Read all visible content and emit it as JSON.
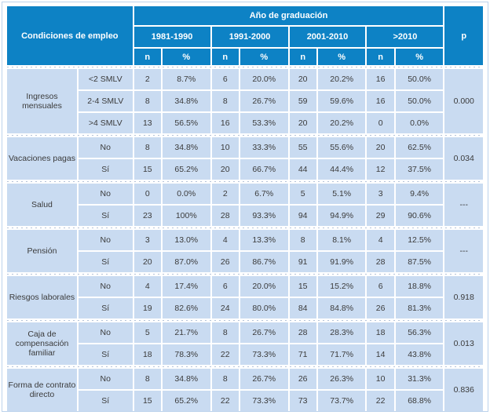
{
  "colors": {
    "header_bg": "#0d82c5",
    "cell_bg": "#c9dbf1",
    "header_text": "#ffffff",
    "body_text": "#3b3b3b"
  },
  "table": {
    "header": {
      "col1": "Condiciones de empleo",
      "group_title": "Año de graduación",
      "periods": [
        "1981-1990",
        "1991-2000",
        "2001-2010",
        ">2010"
      ],
      "n_label": "n",
      "pct_label": "%",
      "p_label": "p"
    },
    "groups": [
      {
        "category": "Ingresos mensuales",
        "p": "0.000",
        "rows": [
          {
            "label": "<2 SMLV",
            "values": [
              "2",
              "8.7%",
              "6",
              "20.0%",
              "20",
              "20.2%",
              "16",
              "50.0%"
            ]
          },
          {
            "label": "2-4 SMLV",
            "values": [
              "8",
              "34.8%",
              "8",
              "26.7%",
              "59",
              "59.6%",
              "16",
              "50.0%"
            ]
          },
          {
            "label": ">4 SMLV",
            "values": [
              "13",
              "56.5%",
              "16",
              "53.3%",
              "20",
              "20.2%",
              "0",
              "0.0%"
            ]
          }
        ]
      },
      {
        "category": "Vacaciones pagas",
        "p": "0.034",
        "rows": [
          {
            "label": "No",
            "values": [
              "8",
              "34.8%",
              "10",
              "33.3%",
              "55",
              "55.6%",
              "20",
              "62.5%"
            ]
          },
          {
            "label": "Sí",
            "values": [
              "15",
              "65.2%",
              "20",
              "66.7%",
              "44",
              "44.4%",
              "12",
              "37.5%"
            ]
          }
        ]
      },
      {
        "category": "Salud",
        "p": "---",
        "rows": [
          {
            "label": "No",
            "values": [
              "0",
              "0.0%",
              "2",
              "6.7%",
              "5",
              "5.1%",
              "3",
              "9.4%"
            ]
          },
          {
            "label": "Sí",
            "values": [
              "23",
              "100%",
              "28",
              "93.3%",
              "94",
              "94.9%",
              "29",
              "90.6%"
            ]
          }
        ]
      },
      {
        "category": "Pensión",
        "p": "---",
        "rows": [
          {
            "label": "No",
            "values": [
              "3",
              "13.0%",
              "4",
              "13.3%",
              "8",
              "8.1%",
              "4",
              "12.5%"
            ]
          },
          {
            "label": "Sí",
            "values": [
              "20",
              "87.0%",
              "26",
              "86.7%",
              "91",
              "91.9%",
              "28",
              "87.5%"
            ]
          }
        ]
      },
      {
        "category": "Riesgos laborales",
        "p": "0.918",
        "rows": [
          {
            "label": "No",
            "values": [
              "4",
              "17.4%",
              "6",
              "20.0%",
              "15",
              "15.2%",
              "6",
              "18.8%"
            ]
          },
          {
            "label": "Sí",
            "values": [
              "19",
              "82.6%",
              "24",
              "80.0%",
              "84",
              "84.8%",
              "26",
              "81.3%"
            ]
          }
        ]
      },
      {
        "category": "Caja de compensación familiar",
        "p": "0.013",
        "rows": [
          {
            "label": "No",
            "values": [
              "5",
              "21.7%",
              "8",
              "26.7%",
              "28",
              "28.3%",
              "18",
              "56.3%"
            ]
          },
          {
            "label": "Sí",
            "values": [
              "18",
              "78.3%",
              "22",
              "73.3%",
              "71",
              "71.7%",
              "14",
              "43.8%"
            ]
          }
        ]
      },
      {
        "category": "Forma de contrato directo",
        "p": "0.836",
        "rows": [
          {
            "label": "No",
            "values": [
              "8",
              "34.8%",
              "8",
              "26.7%",
              "26",
              "26.3%",
              "10",
              "31.3%"
            ]
          },
          {
            "label": "Sí",
            "values": [
              "15",
              "65.2%",
              "22",
              "73.3%",
              "73",
              "73.7%",
              "22",
              "68.8%"
            ]
          }
        ]
      }
    ]
  }
}
